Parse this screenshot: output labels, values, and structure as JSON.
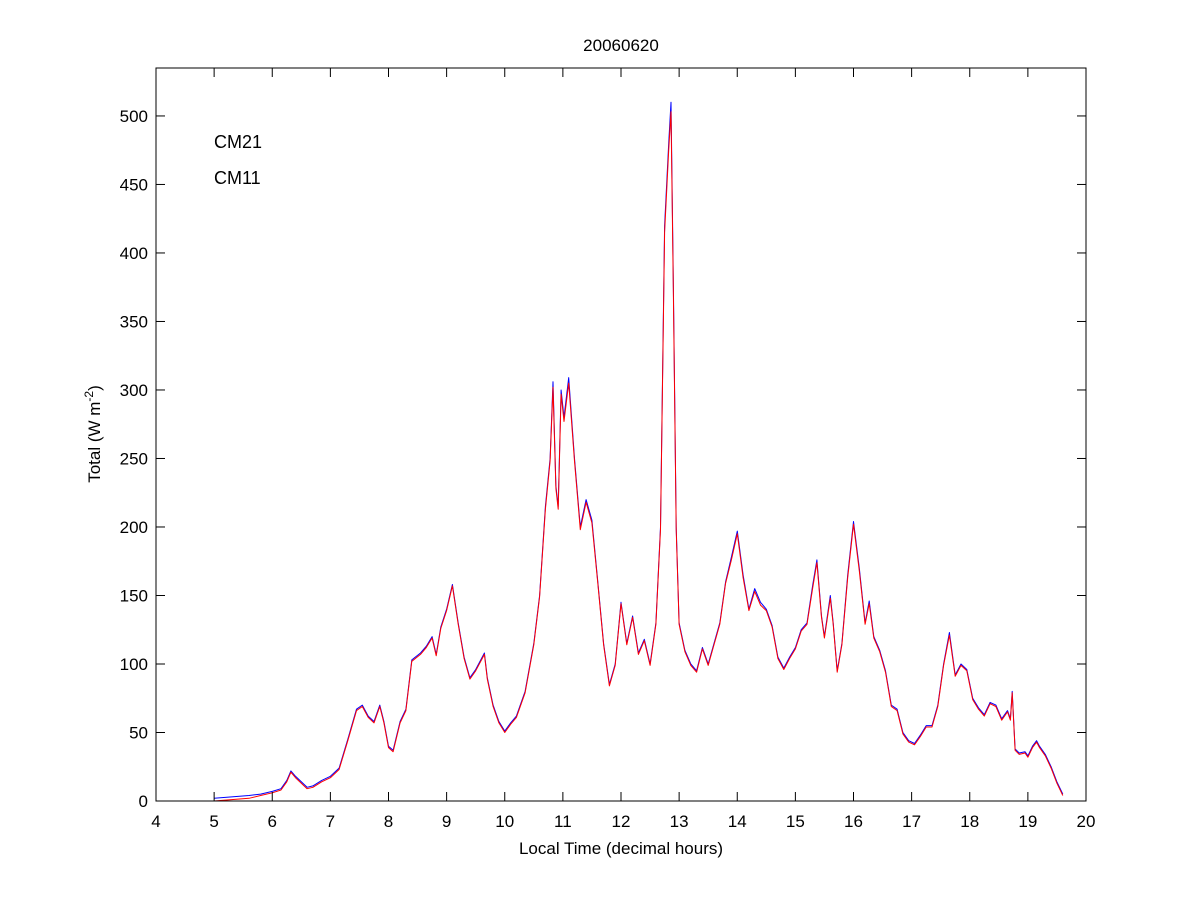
{
  "chart_data": {
    "type": "line",
    "title": "20060620",
    "xlabel": "Local Time (decimal hours)",
    "ylabel_main": "Total (W m",
    "ylabel_sup": "-2",
    "ylabel_close": ")",
    "xlim": [
      4,
      20
    ],
    "ylim": [
      0,
      535
    ],
    "xticks": [
      4,
      5,
      6,
      7,
      8,
      9,
      10,
      11,
      12,
      13,
      14,
      15,
      16,
      17,
      18,
      19,
      20
    ],
    "yticks": [
      0,
      50,
      100,
      150,
      200,
      250,
      300,
      350,
      400,
      450,
      500
    ],
    "grid": false,
    "legend_position": "top-left",
    "series": [
      {
        "name": "CM21",
        "color": "#0000ff",
        "points": [
          [
            5.0,
            2
          ],
          [
            5.3,
            3
          ],
          [
            5.6,
            4
          ],
          [
            5.8,
            5
          ],
          [
            6.0,
            7
          ],
          [
            6.15,
            9
          ],
          [
            6.25,
            15
          ],
          [
            6.32,
            22
          ],
          [
            6.4,
            18
          ],
          [
            6.5,
            14
          ],
          [
            6.6,
            10
          ],
          [
            6.7,
            11
          ],
          [
            6.85,
            15
          ],
          [
            7.0,
            18
          ],
          [
            7.15,
            24
          ],
          [
            7.3,
            45
          ],
          [
            7.45,
            67
          ],
          [
            7.55,
            70
          ],
          [
            7.65,
            62
          ],
          [
            7.75,
            58
          ],
          [
            7.85,
            70
          ],
          [
            7.92,
            58
          ],
          [
            8.0,
            40
          ],
          [
            8.08,
            37
          ],
          [
            8.2,
            58
          ],
          [
            8.3,
            67
          ],
          [
            8.4,
            103
          ],
          [
            8.55,
            108
          ],
          [
            8.65,
            113
          ],
          [
            8.75,
            120
          ],
          [
            8.82,
            107
          ],
          [
            8.9,
            127
          ],
          [
            9.0,
            140
          ],
          [
            9.1,
            158
          ],
          [
            9.2,
            130
          ],
          [
            9.3,
            105
          ],
          [
            9.4,
            90
          ],
          [
            9.5,
            96
          ],
          [
            9.6,
            104
          ],
          [
            9.65,
            108
          ],
          [
            9.7,
            90
          ],
          [
            9.8,
            70
          ],
          [
            9.9,
            58
          ],
          [
            10.0,
            51
          ],
          [
            10.1,
            57
          ],
          [
            10.2,
            62
          ],
          [
            10.35,
            80
          ],
          [
            10.5,
            115
          ],
          [
            10.6,
            150
          ],
          [
            10.7,
            215
          ],
          [
            10.78,
            250
          ],
          [
            10.83,
            306
          ],
          [
            10.88,
            230
          ],
          [
            10.92,
            215
          ],
          [
            10.97,
            300
          ],
          [
            11.02,
            280
          ],
          [
            11.1,
            309
          ],
          [
            11.2,
            250
          ],
          [
            11.3,
            200
          ],
          [
            11.4,
            220
          ],
          [
            11.5,
            205
          ],
          [
            11.6,
            160
          ],
          [
            11.7,
            115
          ],
          [
            11.8,
            85
          ],
          [
            11.9,
            100
          ],
          [
            12.0,
            145
          ],
          [
            12.1,
            115
          ],
          [
            12.2,
            135
          ],
          [
            12.3,
            108
          ],
          [
            12.4,
            118
          ],
          [
            12.5,
            100
          ],
          [
            12.6,
            130
          ],
          [
            12.68,
            200
          ],
          [
            12.75,
            420
          ],
          [
            12.82,
            480
          ],
          [
            12.86,
            510
          ],
          [
            12.9,
            380
          ],
          [
            12.95,
            200
          ],
          [
            13.0,
            130
          ],
          [
            13.1,
            110
          ],
          [
            13.2,
            100
          ],
          [
            13.3,
            95
          ],
          [
            13.4,
            112
          ],
          [
            13.5,
            100
          ],
          [
            13.6,
            115
          ],
          [
            13.7,
            130
          ],
          [
            13.8,
            160
          ],
          [
            13.9,
            178
          ],
          [
            14.0,
            197
          ],
          [
            14.1,
            165
          ],
          [
            14.2,
            140
          ],
          [
            14.3,
            155
          ],
          [
            14.4,
            145
          ],
          [
            14.5,
            140
          ],
          [
            14.6,
            128
          ],
          [
            14.7,
            105
          ],
          [
            14.8,
            97
          ],
          [
            14.9,
            105
          ],
          [
            15.0,
            112
          ],
          [
            15.1,
            125
          ],
          [
            15.2,
            130
          ],
          [
            15.3,
            158
          ],
          [
            15.37,
            176
          ],
          [
            15.45,
            135
          ],
          [
            15.5,
            120
          ],
          [
            15.6,
            150
          ],
          [
            15.65,
            130
          ],
          [
            15.72,
            95
          ],
          [
            15.8,
            115
          ],
          [
            15.9,
            165
          ],
          [
            16.0,
            204
          ],
          [
            16.1,
            170
          ],
          [
            16.2,
            130
          ],
          [
            16.27,
            146
          ],
          [
            16.35,
            120
          ],
          [
            16.45,
            110
          ],
          [
            16.55,
            95
          ],
          [
            16.65,
            70
          ],
          [
            16.75,
            67
          ],
          [
            16.85,
            50
          ],
          [
            16.95,
            44
          ],
          [
            17.05,
            42
          ],
          [
            17.15,
            48
          ],
          [
            17.25,
            55
          ],
          [
            17.35,
            55
          ],
          [
            17.45,
            70
          ],
          [
            17.55,
            100
          ],
          [
            17.65,
            123
          ],
          [
            17.75,
            92
          ],
          [
            17.85,
            100
          ],
          [
            17.95,
            96
          ],
          [
            18.05,
            75
          ],
          [
            18.15,
            68
          ],
          [
            18.25,
            63
          ],
          [
            18.35,
            72
          ],
          [
            18.45,
            70
          ],
          [
            18.55,
            60
          ],
          [
            18.65,
            66
          ],
          [
            18.7,
            60
          ],
          [
            18.73,
            80
          ],
          [
            18.78,
            38
          ],
          [
            18.85,
            35
          ],
          [
            18.95,
            36
          ],
          [
            19.0,
            33
          ],
          [
            19.08,
            40
          ],
          [
            19.15,
            44
          ],
          [
            19.2,
            40
          ],
          [
            19.3,
            34
          ],
          [
            19.4,
            25
          ],
          [
            19.5,
            14
          ],
          [
            19.6,
            5
          ]
        ]
      },
      {
        "name": "CM11",
        "color": "#ff0000",
        "points": [
          [
            5.0,
            0
          ],
          [
            5.3,
            1
          ],
          [
            5.6,
            2
          ],
          [
            5.8,
            4
          ],
          [
            6.0,
            6
          ],
          [
            6.15,
            8
          ],
          [
            6.25,
            14
          ],
          [
            6.32,
            21
          ],
          [
            6.4,
            17
          ],
          [
            6.5,
            13
          ],
          [
            6.6,
            9
          ],
          [
            6.7,
            10
          ],
          [
            6.85,
            14
          ],
          [
            7.0,
            17
          ],
          [
            7.15,
            23
          ],
          [
            7.3,
            44
          ],
          [
            7.45,
            66
          ],
          [
            7.55,
            69
          ],
          [
            7.65,
            61
          ],
          [
            7.75,
            57
          ],
          [
            7.85,
            69
          ],
          [
            7.92,
            57
          ],
          [
            8.0,
            39
          ],
          [
            8.08,
            36
          ],
          [
            8.2,
            57
          ],
          [
            8.3,
            66
          ],
          [
            8.4,
            102
          ],
          [
            8.55,
            107
          ],
          [
            8.65,
            112
          ],
          [
            8.75,
            119
          ],
          [
            8.82,
            106
          ],
          [
            8.9,
            126
          ],
          [
            9.0,
            139
          ],
          [
            9.1,
            157
          ],
          [
            9.2,
            129
          ],
          [
            9.3,
            104
          ],
          [
            9.4,
            89
          ],
          [
            9.5,
            95
          ],
          [
            9.6,
            103
          ],
          [
            9.65,
            107
          ],
          [
            9.7,
            89
          ],
          [
            9.8,
            69
          ],
          [
            9.9,
            57
          ],
          [
            10.0,
            50
          ],
          [
            10.1,
            56
          ],
          [
            10.2,
            61
          ],
          [
            10.35,
            79
          ],
          [
            10.5,
            114
          ],
          [
            10.6,
            149
          ],
          [
            10.7,
            213
          ],
          [
            10.78,
            248
          ],
          [
            10.83,
            302
          ],
          [
            10.88,
            228
          ],
          [
            10.92,
            213
          ],
          [
            10.97,
            297
          ],
          [
            11.02,
            277
          ],
          [
            11.1,
            305
          ],
          [
            11.2,
            248
          ],
          [
            11.3,
            198
          ],
          [
            11.4,
            218
          ],
          [
            11.5,
            203
          ],
          [
            11.6,
            159
          ],
          [
            11.7,
            114
          ],
          [
            11.8,
            84
          ],
          [
            11.9,
            99
          ],
          [
            12.0,
            144
          ],
          [
            12.1,
            114
          ],
          [
            12.2,
            134
          ],
          [
            12.3,
            107
          ],
          [
            12.4,
            117
          ],
          [
            12.5,
            99
          ],
          [
            12.6,
            129
          ],
          [
            12.68,
            198
          ],
          [
            12.75,
            415
          ],
          [
            12.82,
            475
          ],
          [
            12.86,
            503
          ],
          [
            12.9,
            375
          ],
          [
            12.95,
            198
          ],
          [
            13.0,
            129
          ],
          [
            13.1,
            109
          ],
          [
            13.2,
            99
          ],
          [
            13.3,
            94
          ],
          [
            13.4,
            111
          ],
          [
            13.5,
            99
          ],
          [
            13.6,
            114
          ],
          [
            13.7,
            129
          ],
          [
            13.8,
            159
          ],
          [
            13.9,
            176
          ],
          [
            14.0,
            195
          ],
          [
            14.1,
            163
          ],
          [
            14.2,
            139
          ],
          [
            14.3,
            153
          ],
          [
            14.4,
            143
          ],
          [
            14.5,
            139
          ],
          [
            14.6,
            127
          ],
          [
            14.7,
            104
          ],
          [
            14.8,
            96
          ],
          [
            14.9,
            104
          ],
          [
            15.0,
            111
          ],
          [
            15.1,
            124
          ],
          [
            15.2,
            129
          ],
          [
            15.3,
            156
          ],
          [
            15.37,
            174
          ],
          [
            15.45,
            134
          ],
          [
            15.5,
            119
          ],
          [
            15.6,
            148
          ],
          [
            15.65,
            129
          ],
          [
            15.72,
            94
          ],
          [
            15.8,
            114
          ],
          [
            15.9,
            163
          ],
          [
            16.0,
            202
          ],
          [
            16.1,
            168
          ],
          [
            16.2,
            129
          ],
          [
            16.27,
            144
          ],
          [
            16.35,
            119
          ],
          [
            16.45,
            109
          ],
          [
            16.55,
            94
          ],
          [
            16.65,
            69
          ],
          [
            16.75,
            66
          ],
          [
            16.85,
            49
          ],
          [
            16.95,
            43
          ],
          [
            17.05,
            41
          ],
          [
            17.15,
            47
          ],
          [
            17.25,
            54
          ],
          [
            17.35,
            54
          ],
          [
            17.45,
            69
          ],
          [
            17.55,
            99
          ],
          [
            17.65,
            121
          ],
          [
            17.75,
            91
          ],
          [
            17.85,
            99
          ],
          [
            17.95,
            95
          ],
          [
            18.05,
            74
          ],
          [
            18.15,
            67
          ],
          [
            18.25,
            62
          ],
          [
            18.35,
            71
          ],
          [
            18.45,
            69
          ],
          [
            18.55,
            59
          ],
          [
            18.65,
            65
          ],
          [
            18.7,
            59
          ],
          [
            18.73,
            79
          ],
          [
            18.78,
            37
          ],
          [
            18.85,
            34
          ],
          [
            18.95,
            35
          ],
          [
            19.0,
            32
          ],
          [
            19.08,
            39
          ],
          [
            19.15,
            43
          ],
          [
            19.2,
            39
          ],
          [
            19.3,
            33
          ],
          [
            19.4,
            24
          ],
          [
            19.5,
            13
          ],
          [
            19.6,
            4
          ]
        ]
      }
    ]
  }
}
